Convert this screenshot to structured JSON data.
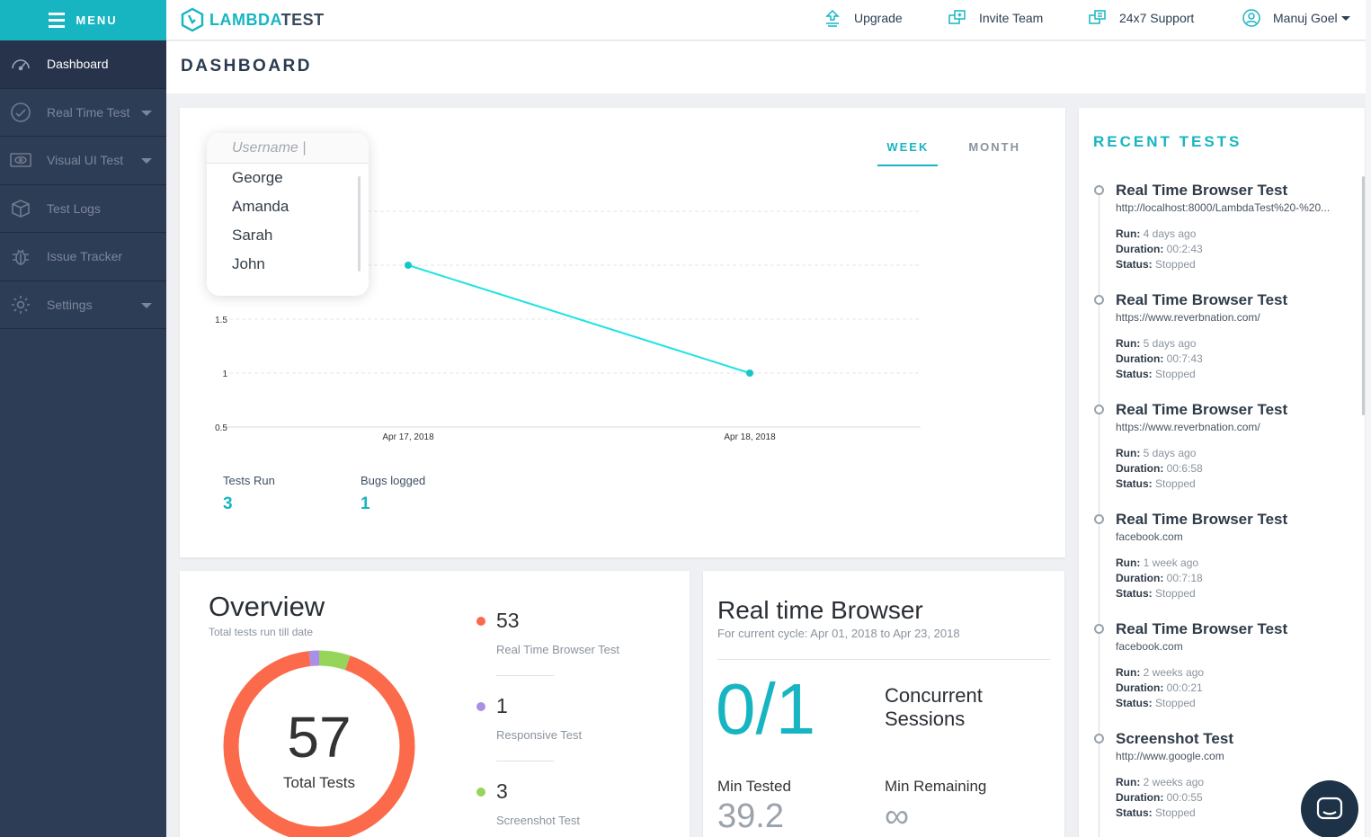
{
  "sidebar": {
    "menu_label": "MENU",
    "items": [
      {
        "label": "Dashboard",
        "icon": "speedometer-icon"
      },
      {
        "label": "Real Time Test",
        "icon": "clock-icon"
      },
      {
        "label": "Visual UI Test",
        "icon": "eye-icon"
      },
      {
        "label": "Test Logs",
        "icon": "box-icon"
      },
      {
        "label": "Issue Tracker",
        "icon": "bug-icon"
      },
      {
        "label": "Settings",
        "icon": "gear-icon"
      }
    ]
  },
  "topbar": {
    "logo_part1": "LAMBDA",
    "logo_part2": "TEST",
    "upgrade": "Upgrade",
    "invite": "Invite Team",
    "support": "24x7 Support",
    "user": "Manuj Goel"
  },
  "page": {
    "title": "DASHBOARD"
  },
  "activity": {
    "tabs": [
      "WEEK",
      "MONTH"
    ],
    "dropdown": {
      "placeholder": "Username |",
      "options": [
        "George",
        "Amanda",
        "Sarah",
        "John"
      ]
    },
    "stats": {
      "tests_run_label": "Tests Run",
      "tests_run_value": "3",
      "bugs_label": "Bugs logged",
      "bugs_value": "1"
    }
  },
  "chart_data": {
    "type": "line",
    "categories": [
      "Apr 17, 2018",
      "Apr 18, 2018"
    ],
    "series": [
      {
        "values": [
          2,
          1
        ]
      }
    ],
    "yticks": [
      "0.5",
      "1",
      "1.5"
    ],
    "ylim": [
      0.5,
      2.5
    ],
    "grid": true,
    "color": "#1ee3e3"
  },
  "overview": {
    "title": "Overview",
    "subtitle": "Total tests run till date",
    "total": "57",
    "total_label": "Total Tests",
    "items": [
      {
        "value": "53",
        "label": "Real Time Browser Test",
        "color": "#fb6a4a"
      },
      {
        "value": "1",
        "label": "Responsive Test",
        "color": "#a98fe8"
      },
      {
        "value": "3",
        "label": "Screenshot Test",
        "color": "#97d55a"
      }
    ]
  },
  "realtime": {
    "title": "Real time Browser",
    "subtitle": "For current cycle: Apr 01, 2018 to Apr 23, 2018",
    "sessions": "0/1",
    "sessions_label": "Concurrent Sessions",
    "min_tested_label": "Min Tested",
    "min_tested": "39.2",
    "min_remaining_label": "Min Remaining",
    "min_remaining": "∞"
  },
  "recent": {
    "title": "RECENT TESTS",
    "run_label": "Run:",
    "duration_label": "Duration:",
    "status_label": "Status:",
    "items": [
      {
        "title": "Real Time Browser Test",
        "url": "http://localhost:8000/LambdaTest%20-%20...",
        "run": "4 days ago",
        "duration": "00:2:43",
        "status": "Stopped"
      },
      {
        "title": "Real Time Browser Test",
        "url": "https://www.reverbnation.com/",
        "run": "5 days ago",
        "duration": "00:7:43",
        "status": "Stopped"
      },
      {
        "title": "Real Time Browser Test",
        "url": "https://www.reverbnation.com/",
        "run": "5 days ago",
        "duration": "00:6:58",
        "status": "Stopped"
      },
      {
        "title": "Real Time Browser Test",
        "url": "facebook.com",
        "run": "1 week ago",
        "duration": "00:7:18",
        "status": "Stopped"
      },
      {
        "title": "Real Time Browser Test",
        "url": "facebook.com",
        "run": "2 weeks ago",
        "duration": "00:0:21",
        "status": "Stopped"
      },
      {
        "title": "Screenshot Test",
        "url": "http://www.google.com",
        "run": "2 weeks ago",
        "duration": "00:0:55",
        "status": "Stopped"
      }
    ]
  },
  "colors": {
    "accent": "#17b5c2",
    "sidebar": "#2e3d56"
  }
}
